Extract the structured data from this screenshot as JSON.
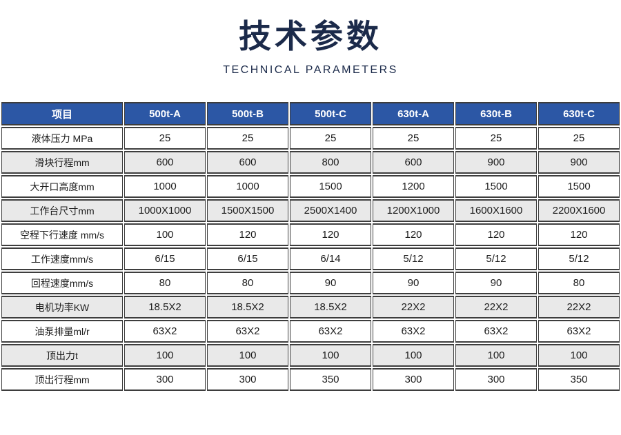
{
  "title": "技术参数",
  "subtitle": "TECHNICAL PARAMETERS",
  "colors": {
    "title_navy": "#1b2a4a",
    "header_blue": "#2c57a5",
    "stripe_gray": "#e9e9e9",
    "border_dark": "#3d3d3d",
    "cell_white": "#ffffff",
    "header_text": "#ffffff",
    "body_text": "#1c1c1c"
  },
  "table": {
    "columns": [
      "项目",
      "500t-A",
      "500t-B",
      "500t-C",
      "630t-A",
      "630t-B",
      "630t-C"
    ],
    "rows": [
      {
        "label": "液体压力 MPa",
        "shaded": false,
        "values": [
          "25",
          "25",
          "25",
          "25",
          "25",
          "25"
        ]
      },
      {
        "label": "滑块行程mm",
        "shaded": true,
        "values": [
          "600",
          "600",
          "800",
          "600",
          "900",
          "900"
        ]
      },
      {
        "label": "大开口高度mm",
        "shaded": false,
        "values": [
          "1000",
          "1000",
          "1500",
          "1200",
          "1500",
          "1500"
        ]
      },
      {
        "label": "工作台尺寸mm",
        "shaded": true,
        "values": [
          "1000X1000",
          "1500X1500",
          "2500X1400",
          "1200X1000",
          "1600X1600",
          "2200X1600"
        ]
      },
      {
        "label": "空程下行速度 mm/s",
        "shaded": false,
        "values": [
          "100",
          "120",
          "120",
          "120",
          "120",
          "120"
        ]
      },
      {
        "label": "工作速度mm/s",
        "shaded": false,
        "values": [
          "6/15",
          "6/15",
          "6/14",
          "5/12",
          "5/12",
          "5/12"
        ]
      },
      {
        "label": "回程速度mm/s",
        "shaded": false,
        "values": [
          "80",
          "80",
          "90",
          "90",
          "90",
          "80"
        ]
      },
      {
        "label": "电机功率KW",
        "shaded": true,
        "values": [
          "18.5X2",
          "18.5X2",
          "18.5X2",
          "22X2",
          "22X2",
          "22X2"
        ]
      },
      {
        "label": "油泵排量ml/r",
        "shaded": false,
        "values": [
          "63X2",
          "63X2",
          "63X2",
          "63X2",
          "63X2",
          "63X2"
        ]
      },
      {
        "label": "顶出力t",
        "shaded": true,
        "values": [
          "100",
          "100",
          "100",
          "100",
          "100",
          "100"
        ]
      },
      {
        "label": "顶出行程mm",
        "shaded": false,
        "values": [
          "300",
          "300",
          "350",
          "300",
          "300",
          "350"
        ]
      }
    ]
  }
}
